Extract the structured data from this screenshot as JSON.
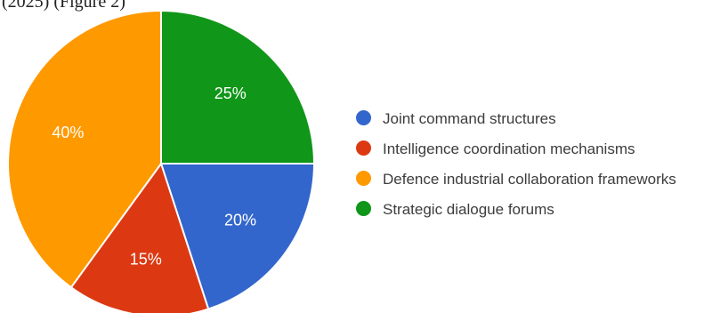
{
  "caption": "(2025) (Figure 2)",
  "chart_data": {
    "type": "pie",
    "title": "",
    "legend_placement": "right",
    "slices": [
      {
        "label": "Joint command structures",
        "value": 20,
        "display": "20%",
        "color": "#3366cc"
      },
      {
        "label": "Intelligence coordination mechanisms",
        "value": 15,
        "display": "15%",
        "color": "#dc3912"
      },
      {
        "label": "Defence industrial collaboration frameworks",
        "value": 40,
        "display": "40%",
        "color": "#ff9900"
      },
      {
        "label": "Strategic dialogue forums",
        "value": 25,
        "display": "25%",
        "color": "#109618"
      }
    ]
  }
}
